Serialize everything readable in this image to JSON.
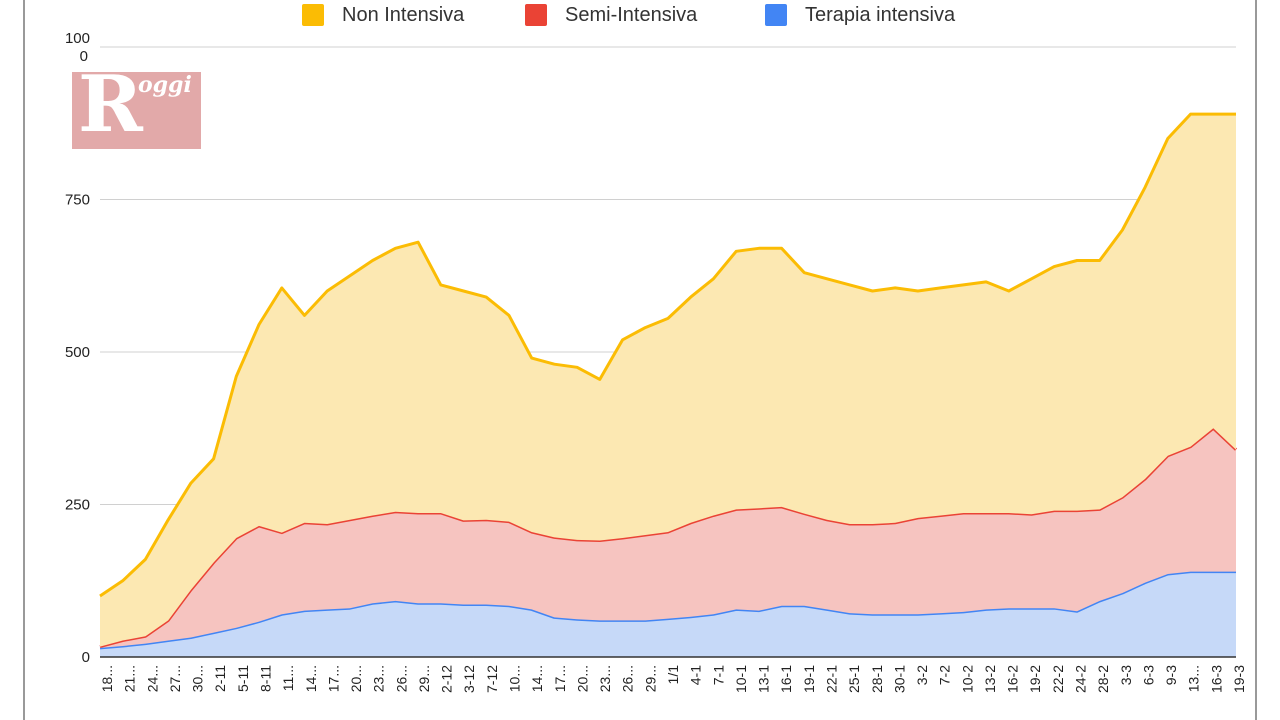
{
  "chart_data": {
    "type": "area",
    "stacked": true,
    "legend_position": "top",
    "grid": true,
    "ylim": [
      0,
      1000
    ],
    "y_ticks": [
      {
        "value": 0,
        "label": "0"
      },
      {
        "value": 250,
        "label": "250"
      },
      {
        "value": 500,
        "label": "500"
      },
      {
        "value": 750,
        "label": "750"
      },
      {
        "value": 1000,
        "label": "100\n0"
      }
    ],
    "x_tick_labels": [
      "18...",
      "21...",
      "24...",
      "27...",
      "30...",
      "2-11",
      "5-11",
      "8-11",
      "11...",
      "14...",
      "17...",
      "20...",
      "23...",
      "26...",
      "29...",
      "2-12",
      "3-12",
      "7-12",
      "10...",
      "14...",
      "17...",
      "20...",
      "23...",
      "26...",
      "29...",
      "1/1",
      "4-1",
      "7-1",
      "10-1",
      "13-1",
      "16-1",
      "19-1",
      "22-1",
      "25-1",
      "28-1",
      "30-1",
      "3-2",
      "7-2",
      "10-2",
      "13-2",
      "16-2",
      "19-2",
      "22-2",
      "24-2",
      "28-2",
      "3-3",
      "6-3",
      "9-3",
      "13...",
      "16-3",
      "19-3"
    ],
    "series": [
      {
        "name": "Terapia intensiva",
        "color": "#4285f4",
        "fill": "#c6d9f8",
        "values": [
          15,
          18,
          22,
          27,
          32,
          40,
          48,
          58,
          70,
          76,
          78,
          80,
          88,
          92,
          88,
          88,
          86,
          86,
          84,
          78,
          65,
          62,
          60,
          60,
          60,
          63,
          66,
          70,
          78,
          76,
          84,
          84,
          78,
          72,
          70,
          70,
          70,
          72,
          74,
          78,
          80,
          80,
          80,
          75,
          92,
          105,
          122,
          136,
          140,
          140,
          140
        ]
      },
      {
        "name": "Semi-Intensiva",
        "color": "#ea4335",
        "fill": "#f6c4c0",
        "values": [
          17,
          27,
          34,
          60,
          110,
          155,
          195,
          215,
          204,
          220,
          218,
          225,
          232,
          238,
          236,
          236,
          224,
          225,
          222,
          205,
          196,
          192,
          191,
          195,
          200,
          205,
          220,
          232,
          242,
          244,
          246,
          235,
          225,
          218,
          218,
          220,
          228,
          232,
          236,
          236,
          236,
          234,
          240,
          240,
          242,
          262,
          292,
          330,
          345,
          375,
          340
        ]
      },
      {
        "name": "Non Intensiva",
        "color": "#fbbc04",
        "fill": "#fce8b2",
        "values": [
          100,
          125,
          160,
          225,
          285,
          325,
          460,
          545,
          605,
          560,
          600,
          625,
          650,
          670,
          680,
          610,
          600,
          590,
          560,
          490,
          480,
          475,
          455,
          520,
          540,
          555,
          590,
          620,
          665,
          670,
          670,
          630,
          620,
          610,
          600,
          605,
          600,
          605,
          610,
          615,
          600,
          620,
          640,
          650,
          650,
          700,
          770,
          850,
          890,
          890,
          890
        ]
      }
    ]
  }
}
